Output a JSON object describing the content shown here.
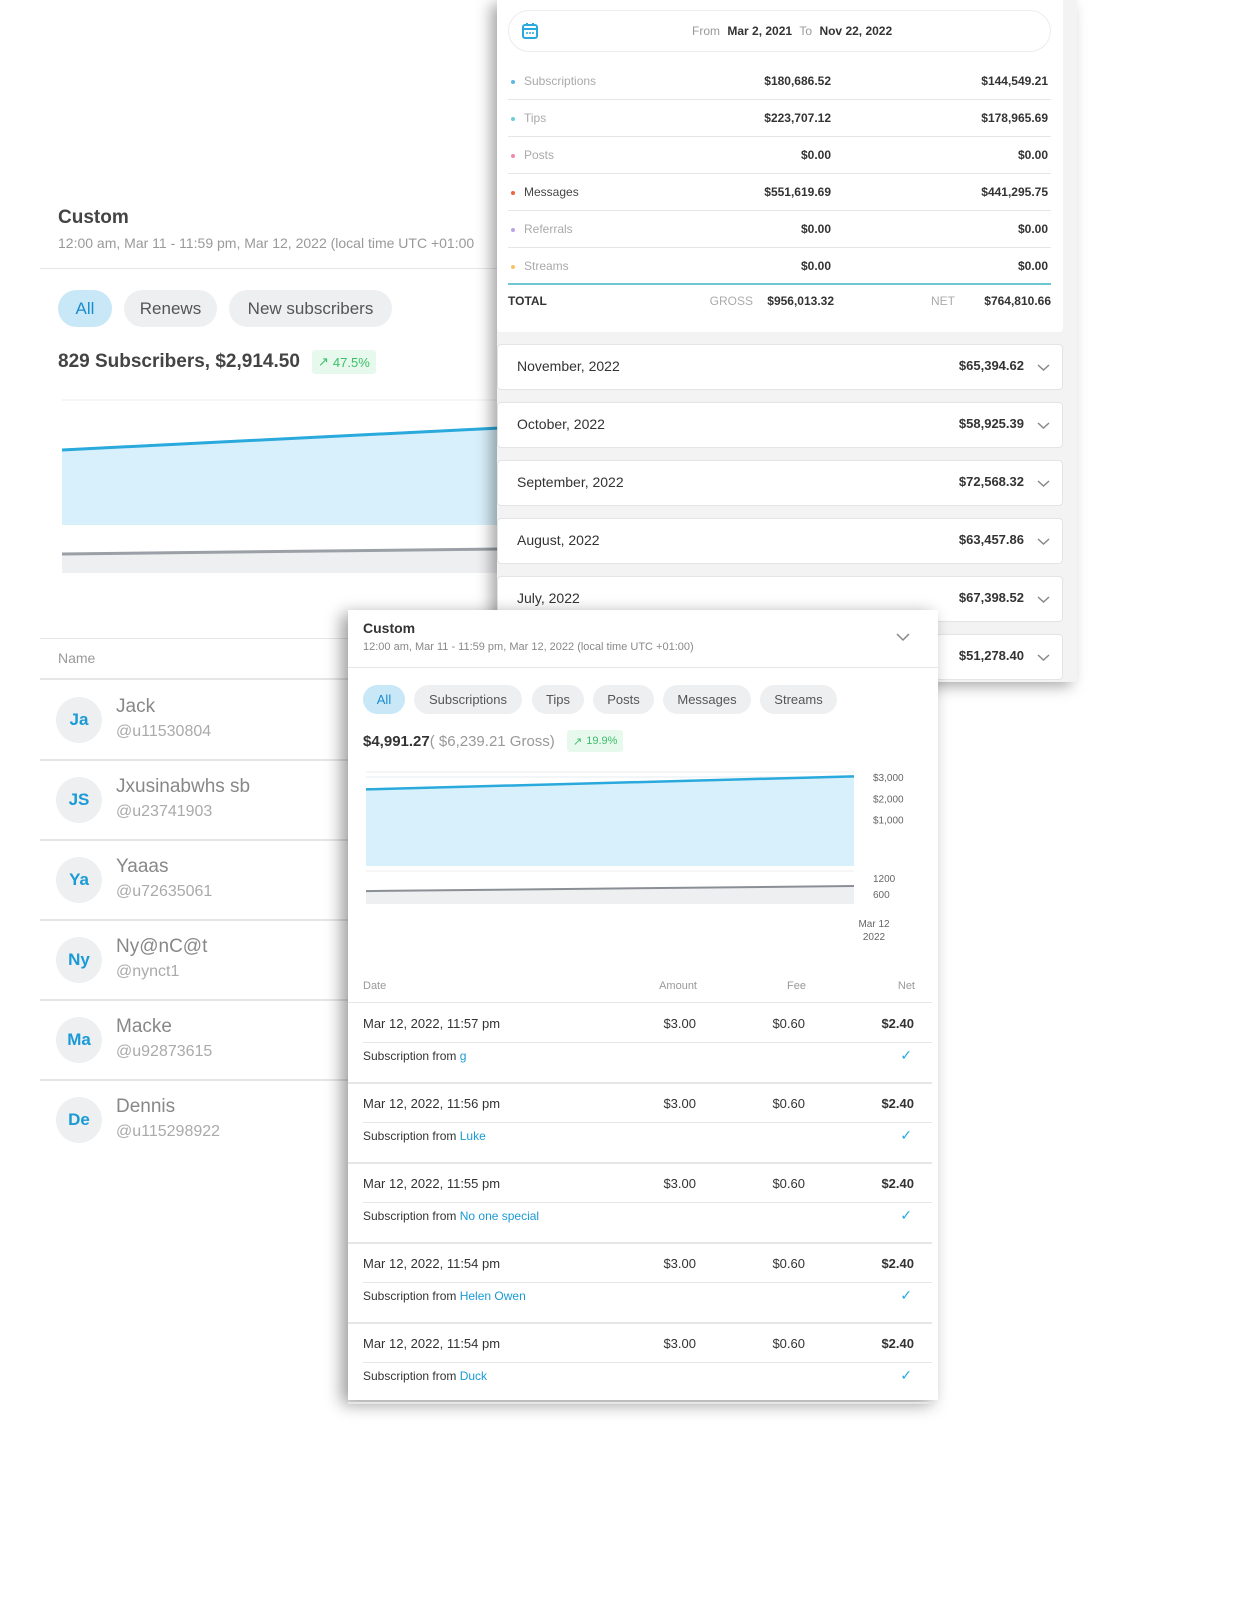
{
  "subscribers_panel": {
    "title": "Custom",
    "subtitle": "12:00 am, Mar 11 - 11:59 pm, Mar 12, 2022 (local time UTC +01:00",
    "filters": [
      {
        "label": "All",
        "active": true
      },
      {
        "label": "Renews",
        "active": false
      },
      {
        "label": "New subscribers",
        "active": false
      }
    ],
    "summary": "829 Subscribers, $2,914.50",
    "change": "47.5%",
    "table_header": "Name",
    "users": [
      {
        "initials": "Ja",
        "name": "Jack",
        "handle": "@u11530804"
      },
      {
        "initials": "JS",
        "name": "Jxusinabwhs sb",
        "handle": "@u23741903"
      },
      {
        "initials": "Ya",
        "name": "Yaaas",
        "handle": "@u72635061"
      },
      {
        "initials": "Ny",
        "name": "Ny@nC@t",
        "handle": "@nynct1"
      },
      {
        "initials": "Ma",
        "name": "Macke",
        "handle": "@u92873615"
      },
      {
        "initials": "De",
        "name": "Dennis",
        "handle": "@u115298922"
      }
    ]
  },
  "earnings_panel": {
    "date_range": {
      "from_label": "From",
      "from": "Mar 2, 2021",
      "to_label": "To",
      "to": "Nov 22, 2022"
    },
    "categories": [
      {
        "label": "Subscriptions",
        "gross": "$180,686.52",
        "net": "$144,549.21",
        "color": "#5bb8e0"
      },
      {
        "label": "Tips",
        "gross": "$223,707.12",
        "net": "$178,965.69",
        "color": "#6ccfd8"
      },
      {
        "label": "Posts",
        "gross": "$0.00",
        "net": "$0.00",
        "color": "#f08aa8"
      },
      {
        "label": "Messages",
        "gross": "$551,619.69",
        "net": "$441,295.75",
        "color": "#f0643c"
      },
      {
        "label": "Referrals",
        "gross": "$0.00",
        "net": "$0.00",
        "color": "#b9a6e0"
      },
      {
        "label": "Streams",
        "gross": "$0.00",
        "net": "$0.00",
        "color": "#f7c36a"
      }
    ],
    "total": {
      "label": "TOTAL",
      "gross_label": "GROSS",
      "gross": "$956,013.32",
      "net_label": "NET",
      "net": "$764,810.66"
    },
    "months": [
      {
        "label": "November, 2022",
        "amount": "$65,394.62"
      },
      {
        "label": "October, 2022",
        "amount": "$58,925.39"
      },
      {
        "label": "September, 2022",
        "amount": "$72,568.32"
      },
      {
        "label": "August, 2022",
        "amount": "$63,457.86"
      },
      {
        "label": "July, 2022",
        "amount": "$67,398.52"
      },
      {
        "label": "",
        "amount": "$51,278.40"
      }
    ]
  },
  "statements_panel": {
    "title": "Custom",
    "subtitle": "12:00 am, Mar 11 - 11:59 pm, Mar 12, 2022 (local time UTC +01:00)",
    "filters": [
      {
        "label": "All",
        "active": true
      },
      {
        "label": "Subscriptions",
        "active": false
      },
      {
        "label": "Tips",
        "active": false
      },
      {
        "label": "Posts",
        "active": false
      },
      {
        "label": "Messages",
        "active": false
      },
      {
        "label": "Streams",
        "active": false
      }
    ],
    "net_total": "$4,991.27",
    "gross_total": "( $6,239.21 Gross)",
    "change": "19.9%",
    "columns": {
      "date": "Date",
      "amount": "Amount",
      "fee": "Fee",
      "net": "Net"
    },
    "description_prefix": "Subscription from",
    "transactions": [
      {
        "date": "Mar 12, 2022, 11:57 pm",
        "amount": "$3.00",
        "fee": "$0.60",
        "net": "$2.40",
        "from": "g"
      },
      {
        "date": "Mar 12, 2022, 11:56 pm",
        "amount": "$3.00",
        "fee": "$0.60",
        "net": "$2.40",
        "from": "Luke"
      },
      {
        "date": "Mar 12, 2022, 11:55 pm",
        "amount": "$3.00",
        "fee": "$0.60",
        "net": "$2.40",
        "from": "No one special"
      },
      {
        "date": "Mar 12, 2022, 11:54 pm",
        "amount": "$3.00",
        "fee": "$0.60",
        "net": "$2.40",
        "from": "Helen Owen"
      },
      {
        "date": "Mar 12, 2022, 11:54 pm",
        "amount": "$3.00",
        "fee": "$0.60",
        "net": "$2.40",
        "from": "Duck"
      }
    ]
  },
  "chart_data": {
    "type": "area",
    "x_tick": [
      "Mar 12",
      "2022"
    ],
    "upper": {
      "yticks": [
        "$3,000",
        "$2,000",
        "$1,000"
      ],
      "ylim": [
        0,
        3000
      ],
      "values": [
        2420,
        3030
      ],
      "color": "#29a9dc"
    },
    "lower": {
      "yticks": [
        "1200",
        "600"
      ],
      "values": [
        710,
        900
      ],
      "color": "#8a8f96"
    }
  }
}
